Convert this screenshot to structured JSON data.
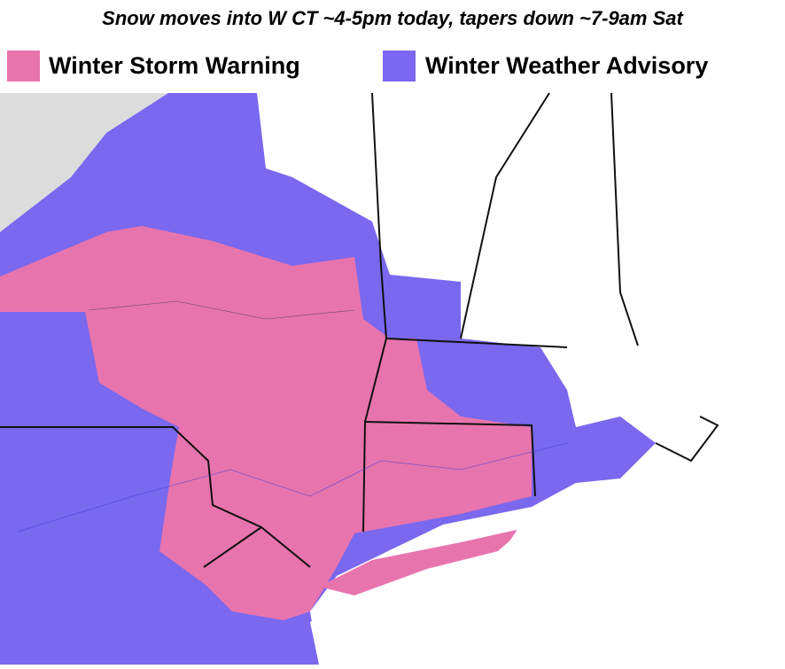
{
  "title": "Snow moves into W CT ~4-5pm today, tapers down ~7-9am Sat",
  "legend": [
    {
      "label": "Winter Storm Warning",
      "color": "#e874ae"
    },
    {
      "label": "Winter Weather Advisory",
      "color": "#7a68ee"
    }
  ]
}
